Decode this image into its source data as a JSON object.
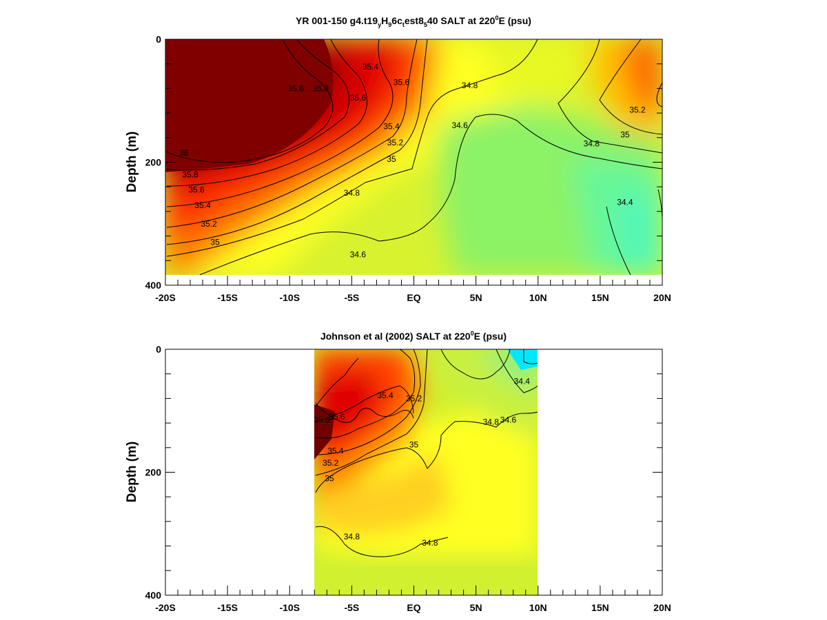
{
  "chart_data": [
    {
      "type": "heatmap",
      "title_parts": [
        "YR 001-150 g4.t19",
        "y",
        "H",
        "9",
        "6c",
        "t",
        "est8",
        "5",
        "40 SALT at 220",
        "0",
        "E (psu)"
      ],
      "title_parts_style": [
        "n",
        "sub",
        "n",
        "sub",
        "n",
        "sub",
        "n",
        "sub",
        "n",
        "sup",
        "n"
      ],
      "ylabel": "Depth (m)",
      "xlabel": "",
      "x_ticks": [
        "-20S",
        "-15S",
        "-10S",
        "-5S",
        "EQ",
        "5N",
        "10N",
        "15N",
        "20N"
      ],
      "x_tick_values": [
        -20,
        -15,
        -10,
        -5,
        0,
        5,
        10,
        15,
        20
      ],
      "y_ticks": [
        "0",
        "200",
        "400"
      ],
      "y_tick_values": [
        0,
        200,
        400
      ],
      "xlim": [
        -20,
        20
      ],
      "ylim": [
        400,
        0
      ],
      "data_extent": {
        "lat": [
          -20,
          20
        ],
        "depth": [
          0,
          380
        ]
      },
      "units": "psu",
      "contour_labels": [
        {
          "text": "35.4",
          "lat": -3.5,
          "depth": 45
        },
        {
          "text": "35.6",
          "lat": -9.5,
          "depth": 80
        },
        {
          "text": "35.8",
          "lat": -7.5,
          "depth": 80
        },
        {
          "text": "35.6",
          "lat": -4.5,
          "depth": 95
        },
        {
          "text": "35.6",
          "lat": -1.0,
          "depth": 70
        },
        {
          "text": "35.4",
          "lat": -1.8,
          "depth": 142
        },
        {
          "text": "35.2",
          "lat": -1.5,
          "depth": 168
        },
        {
          "text": "35",
          "lat": -1.8,
          "depth": 195
        },
        {
          "text": "34.8",
          "lat": 4.5,
          "depth": 75
        },
        {
          "text": "34.6",
          "lat": 3.7,
          "depth": 140
        },
        {
          "text": "35.2",
          "lat": 18.0,
          "depth": 115
        },
        {
          "text": "35",
          "lat": 17.0,
          "depth": 155
        },
        {
          "text": "34.8",
          "lat": 14.3,
          "depth": 170
        },
        {
          "text": "36",
          "lat": -18.5,
          "depth": 185
        },
        {
          "text": "35.8",
          "lat": -18.0,
          "depth": 220
        },
        {
          "text": "35.6",
          "lat": -17.5,
          "depth": 245
        },
        {
          "text": "35.4",
          "lat": -17.0,
          "depth": 270
        },
        {
          "text": "35.2",
          "lat": -16.5,
          "depth": 300
        },
        {
          "text": "35",
          "lat": -16.0,
          "depth": 330
        },
        {
          "text": "34.8",
          "lat": -5.0,
          "depth": 250
        },
        {
          "text": "34.6",
          "lat": -4.5,
          "depth": 350
        },
        {
          "text": "34.4",
          "lat": 17.0,
          "depth": 265
        }
      ]
    },
    {
      "type": "heatmap",
      "title_parts": [
        "Johnson et al (2002) SALT at 220",
        "0",
        "E (psu)"
      ],
      "title_parts_style": [
        "n",
        "sup",
        "n"
      ],
      "ylabel": "Depth (m)",
      "xlabel": "",
      "x_ticks": [
        "-20S",
        "-15S",
        "-10S",
        "-5S",
        "EQ",
        "5N",
        "10N",
        "15N",
        "20N"
      ],
      "x_tick_values": [
        -20,
        -15,
        -10,
        -5,
        0,
        5,
        10,
        15,
        20
      ],
      "y_ticks": [
        "0",
        "200",
        "400"
      ],
      "y_tick_values": [
        0,
        200,
        400
      ],
      "xlim": [
        -20,
        20
      ],
      "ylim": [
        400,
        0
      ],
      "data_extent": {
        "lat": [
          -8,
          10
        ],
        "depth": [
          0,
          400
        ]
      },
      "units": "psu",
      "contour_labels": [
        {
          "text": "35.4",
          "lat": -2.3,
          "depth": 75
        },
        {
          "text": "35.2",
          "lat": 0.0,
          "depth": 80
        },
        {
          "text": "35.6",
          "lat": -6.2,
          "depth": 110
        },
        {
          "text": "35.6",
          "lat": -7.4,
          "depth": 115
        },
        {
          "text": "35.4",
          "lat": -6.3,
          "depth": 165
        },
        {
          "text": "35.2",
          "lat": -6.7,
          "depth": 185
        },
        {
          "text": "35",
          "lat": -6.8,
          "depth": 210
        },
        {
          "text": "35",
          "lat": 0.0,
          "depth": 155
        },
        {
          "text": "34.8",
          "lat": 6.2,
          "depth": 118
        },
        {
          "text": "34.6",
          "lat": 7.6,
          "depth": 115
        },
        {
          "text": "34.4",
          "lat": 8.7,
          "depth": 52
        },
        {
          "text": "34.8",
          "lat": -5.0,
          "depth": 305
        },
        {
          "text": "34.8",
          "lat": 1.3,
          "depth": 315
        }
      ]
    }
  ]
}
